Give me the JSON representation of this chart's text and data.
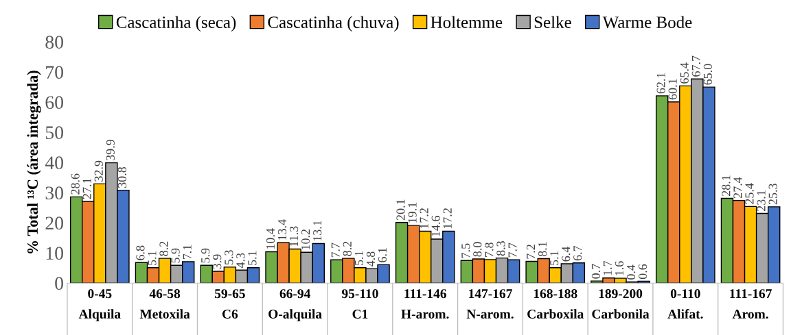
{
  "chart_data": {
    "type": "bar",
    "ylabel": "% Total ¹³C (área integrada)",
    "categories": [
      "0-45\nAlquila",
      "46-58\nMetoxila",
      "59-65\nC6",
      "66-94\nO-alquila",
      "95-110\nC1",
      "111-146\nH-arom.",
      "147-167\nN-arom.",
      "168-188\nCarboxila",
      "189-200\nCarbonila",
      "0-110\nAlifat.",
      "111-167\nArom."
    ],
    "series": [
      {
        "name": "Cascatinha (seca)",
        "color": "#70ad47",
        "values": [
          28.6,
          6.8,
          5.9,
          10.4,
          7.7,
          20.1,
          7.5,
          7.2,
          0.7,
          62.1,
          28.1
        ],
        "value_labels": [
          "28.6",
          "6.8",
          "5.9",
          "10.4",
          "7.7",
          "20.1",
          "7.5",
          "7.2",
          "0.7",
          "62.1",
          "28.1"
        ]
      },
      {
        "name": "Cascatinha (chuva)",
        "color": "#ed7d31",
        "values": [
          27.1,
          5.1,
          3.9,
          13.4,
          8.2,
          19.1,
          8,
          8.1,
          1.7,
          60.1,
          27.4
        ],
        "value_labels": [
          "27.1",
          "5.1",
          "3.9",
          "13.4",
          "8.2",
          "19.1",
          "8.0",
          "8.1",
          "1.7",
          "60.1",
          "27.4"
        ]
      },
      {
        "name": "Holtemme",
        "color": "#ffc000",
        "values": [
          32.9,
          8.2,
          5.3,
          11.3,
          5.1,
          17.2,
          7.8,
          5.1,
          1.6,
          65.4,
          25.4
        ],
        "value_labels": [
          "32.9",
          "8.2",
          "5.3",
          "11.3",
          "5.1",
          "17.2",
          "7.8",
          "5.1",
          "1.6",
          "65.4",
          "25.4"
        ]
      },
      {
        "name": "Selke",
        "color": "#a5a5a5",
        "values": [
          39.9,
          5.9,
          4.3,
          10.2,
          4.8,
          14.6,
          8.3,
          6.4,
          0.4,
          67.7,
          23.1
        ],
        "value_labels": [
          "39.9",
          "5.9",
          "4.3",
          "10.2",
          "4.8",
          "14.6",
          "8.3",
          "6.4",
          "0.4",
          "67.7",
          "23.1"
        ]
      },
      {
        "name": "Warme Bode",
        "color": "#4472c4",
        "values": [
          30.8,
          7.1,
          5.1,
          13.1,
          6.1,
          17.2,
          7.7,
          6.7,
          0.6,
          65,
          25.3
        ],
        "value_labels": [
          "30.8",
          "7.1",
          "5.1",
          "13.1",
          "6.1",
          "17.2",
          "7.7",
          "6.7",
          "0.6",
          "65.0",
          "25.3"
        ]
      }
    ],
    "ylim": [
      0,
      80
    ],
    "yticks": [
      0,
      10,
      20,
      30,
      40,
      50,
      60,
      70,
      80
    ],
    "grid": false,
    "legend": "top"
  }
}
